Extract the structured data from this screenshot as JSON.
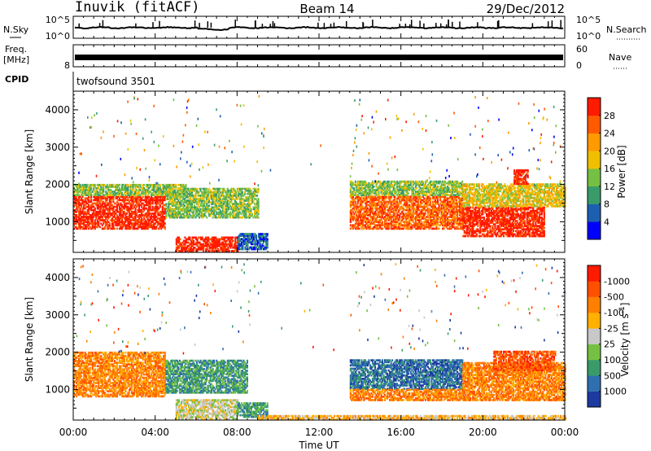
{
  "header": {
    "station": "Inuvik (fitACF)",
    "beam": "Beam 14",
    "date": "29/Dec/2012"
  },
  "strip_panels": {
    "nsky_label": "N.Sky",
    "nsearch_label": "N.Search",
    "nsky_ticks": [
      "10^5",
      "10^0"
    ],
    "nsearch_ticks": [
      "10^5",
      "10^0"
    ],
    "freq_label": "Freq.",
    "freq_unit": "[MHz]",
    "freq_ticks": [
      "8"
    ],
    "nave_label": "Nave",
    "nave_ticks": [
      "60",
      "0"
    ],
    "cpid_label": "CPID",
    "cpid_value": "twofsound 3501"
  },
  "chart_data": [
    {
      "type": "heatmap",
      "panel": "power",
      "ylabel": "Slant Range [km]",
      "yticks": [
        1000,
        2000,
        3000,
        4000
      ],
      "ylim": [
        180,
        4500
      ],
      "xlim": [
        0,
        24
      ],
      "colorbar_label": "Power [dB]",
      "colorbar_ticks": [
        "4",
        "8",
        "12",
        "16",
        "20",
        "24",
        "28"
      ],
      "colorbar_colors": [
        "#0000ff",
        "#1c5fb0",
        "#3a9b6a",
        "#75c043",
        "#f0c000",
        "#ff9a00",
        "#ff5a00",
        "#ff1a00"
      ],
      "regions": [
        {
          "t0": 0.0,
          "t1": 4.5,
          "r0": 800,
          "r1": 1700,
          "level": 7
        },
        {
          "t0": 0.0,
          "t1": 5.5,
          "r0": 1700,
          "r1": 2000,
          "level": 3
        },
        {
          "t0": 4.5,
          "t1": 9.0,
          "r0": 1100,
          "r1": 1900,
          "level": 3
        },
        {
          "t0": 5.0,
          "t1": 8.0,
          "r0": 200,
          "r1": 600,
          "level": 7
        },
        {
          "t0": 8.0,
          "t1": 9.5,
          "r0": 250,
          "r1": 700,
          "level": 1
        },
        {
          "t0": 13.5,
          "t1": 19.0,
          "r0": 800,
          "r1": 1700,
          "level": 6
        },
        {
          "t0": 13.5,
          "t1": 19.0,
          "r0": 1700,
          "r1": 2100,
          "level": 3
        },
        {
          "t0": 19.0,
          "t1": 23.0,
          "r0": 600,
          "r1": 1400,
          "level": 7
        },
        {
          "t0": 19.0,
          "t1": 24.0,
          "r0": 1400,
          "r1": 2000,
          "level": 4
        },
        {
          "t0": 21.5,
          "t1": 22.2,
          "r0": 2000,
          "r1": 2400,
          "level": 7
        }
      ]
    },
    {
      "type": "heatmap",
      "panel": "velocity",
      "ylabel": "Slant Range [km]",
      "yticks": [
        1000,
        2000,
        3000,
        4000
      ],
      "ylim": [
        180,
        4500
      ],
      "xlim": [
        0,
        24
      ],
      "xticks": [
        "00:00",
        "04:00",
        "08:00",
        "12:00",
        "16:00",
        "20:00",
        "00:00"
      ],
      "xlabel": "Time UT",
      "colorbar_label": "Velocity [m s^-1]",
      "colorbar_ticks": [
        "1000",
        "500",
        "100",
        "25",
        "-25",
        "-100",
        "-500",
        "-1000"
      ],
      "colorbar_colors": [
        "#1c3aa0",
        "#2f6fb0",
        "#3a9b6a",
        "#75c043",
        "#c8c8c8",
        "#ffb000",
        "#ff8000",
        "#ff5000",
        "#ff1a00"
      ],
      "regions": [
        {
          "t0": 0.0,
          "t1": 4.5,
          "r0": 800,
          "r1": 2000,
          "level": 6
        },
        {
          "t0": 4.5,
          "t1": 8.5,
          "r0": 900,
          "r1": 1800,
          "level": 2
        },
        {
          "t0": 5.0,
          "t1": 8.0,
          "r0": 200,
          "r1": 700,
          "level": 4
        },
        {
          "t0": 8.0,
          "t1": 9.5,
          "r0": 250,
          "r1": 650,
          "level": 2
        },
        {
          "t0": 13.5,
          "t1": 19.0,
          "r0": 1000,
          "r1": 1800,
          "level": 1
        },
        {
          "t0": 13.5,
          "t1": 19.0,
          "r0": 700,
          "r1": 1000,
          "level": 6
        },
        {
          "t0": 19.0,
          "t1": 24.0,
          "r0": 700,
          "r1": 1700,
          "level": 6
        },
        {
          "t0": 20.5,
          "t1": 23.5,
          "r0": 1500,
          "r1": 2000,
          "level": 7
        },
        {
          "t0": 9.0,
          "t1": 24.0,
          "r0": 180,
          "r1": 300,
          "level": 5
        }
      ]
    }
  ]
}
